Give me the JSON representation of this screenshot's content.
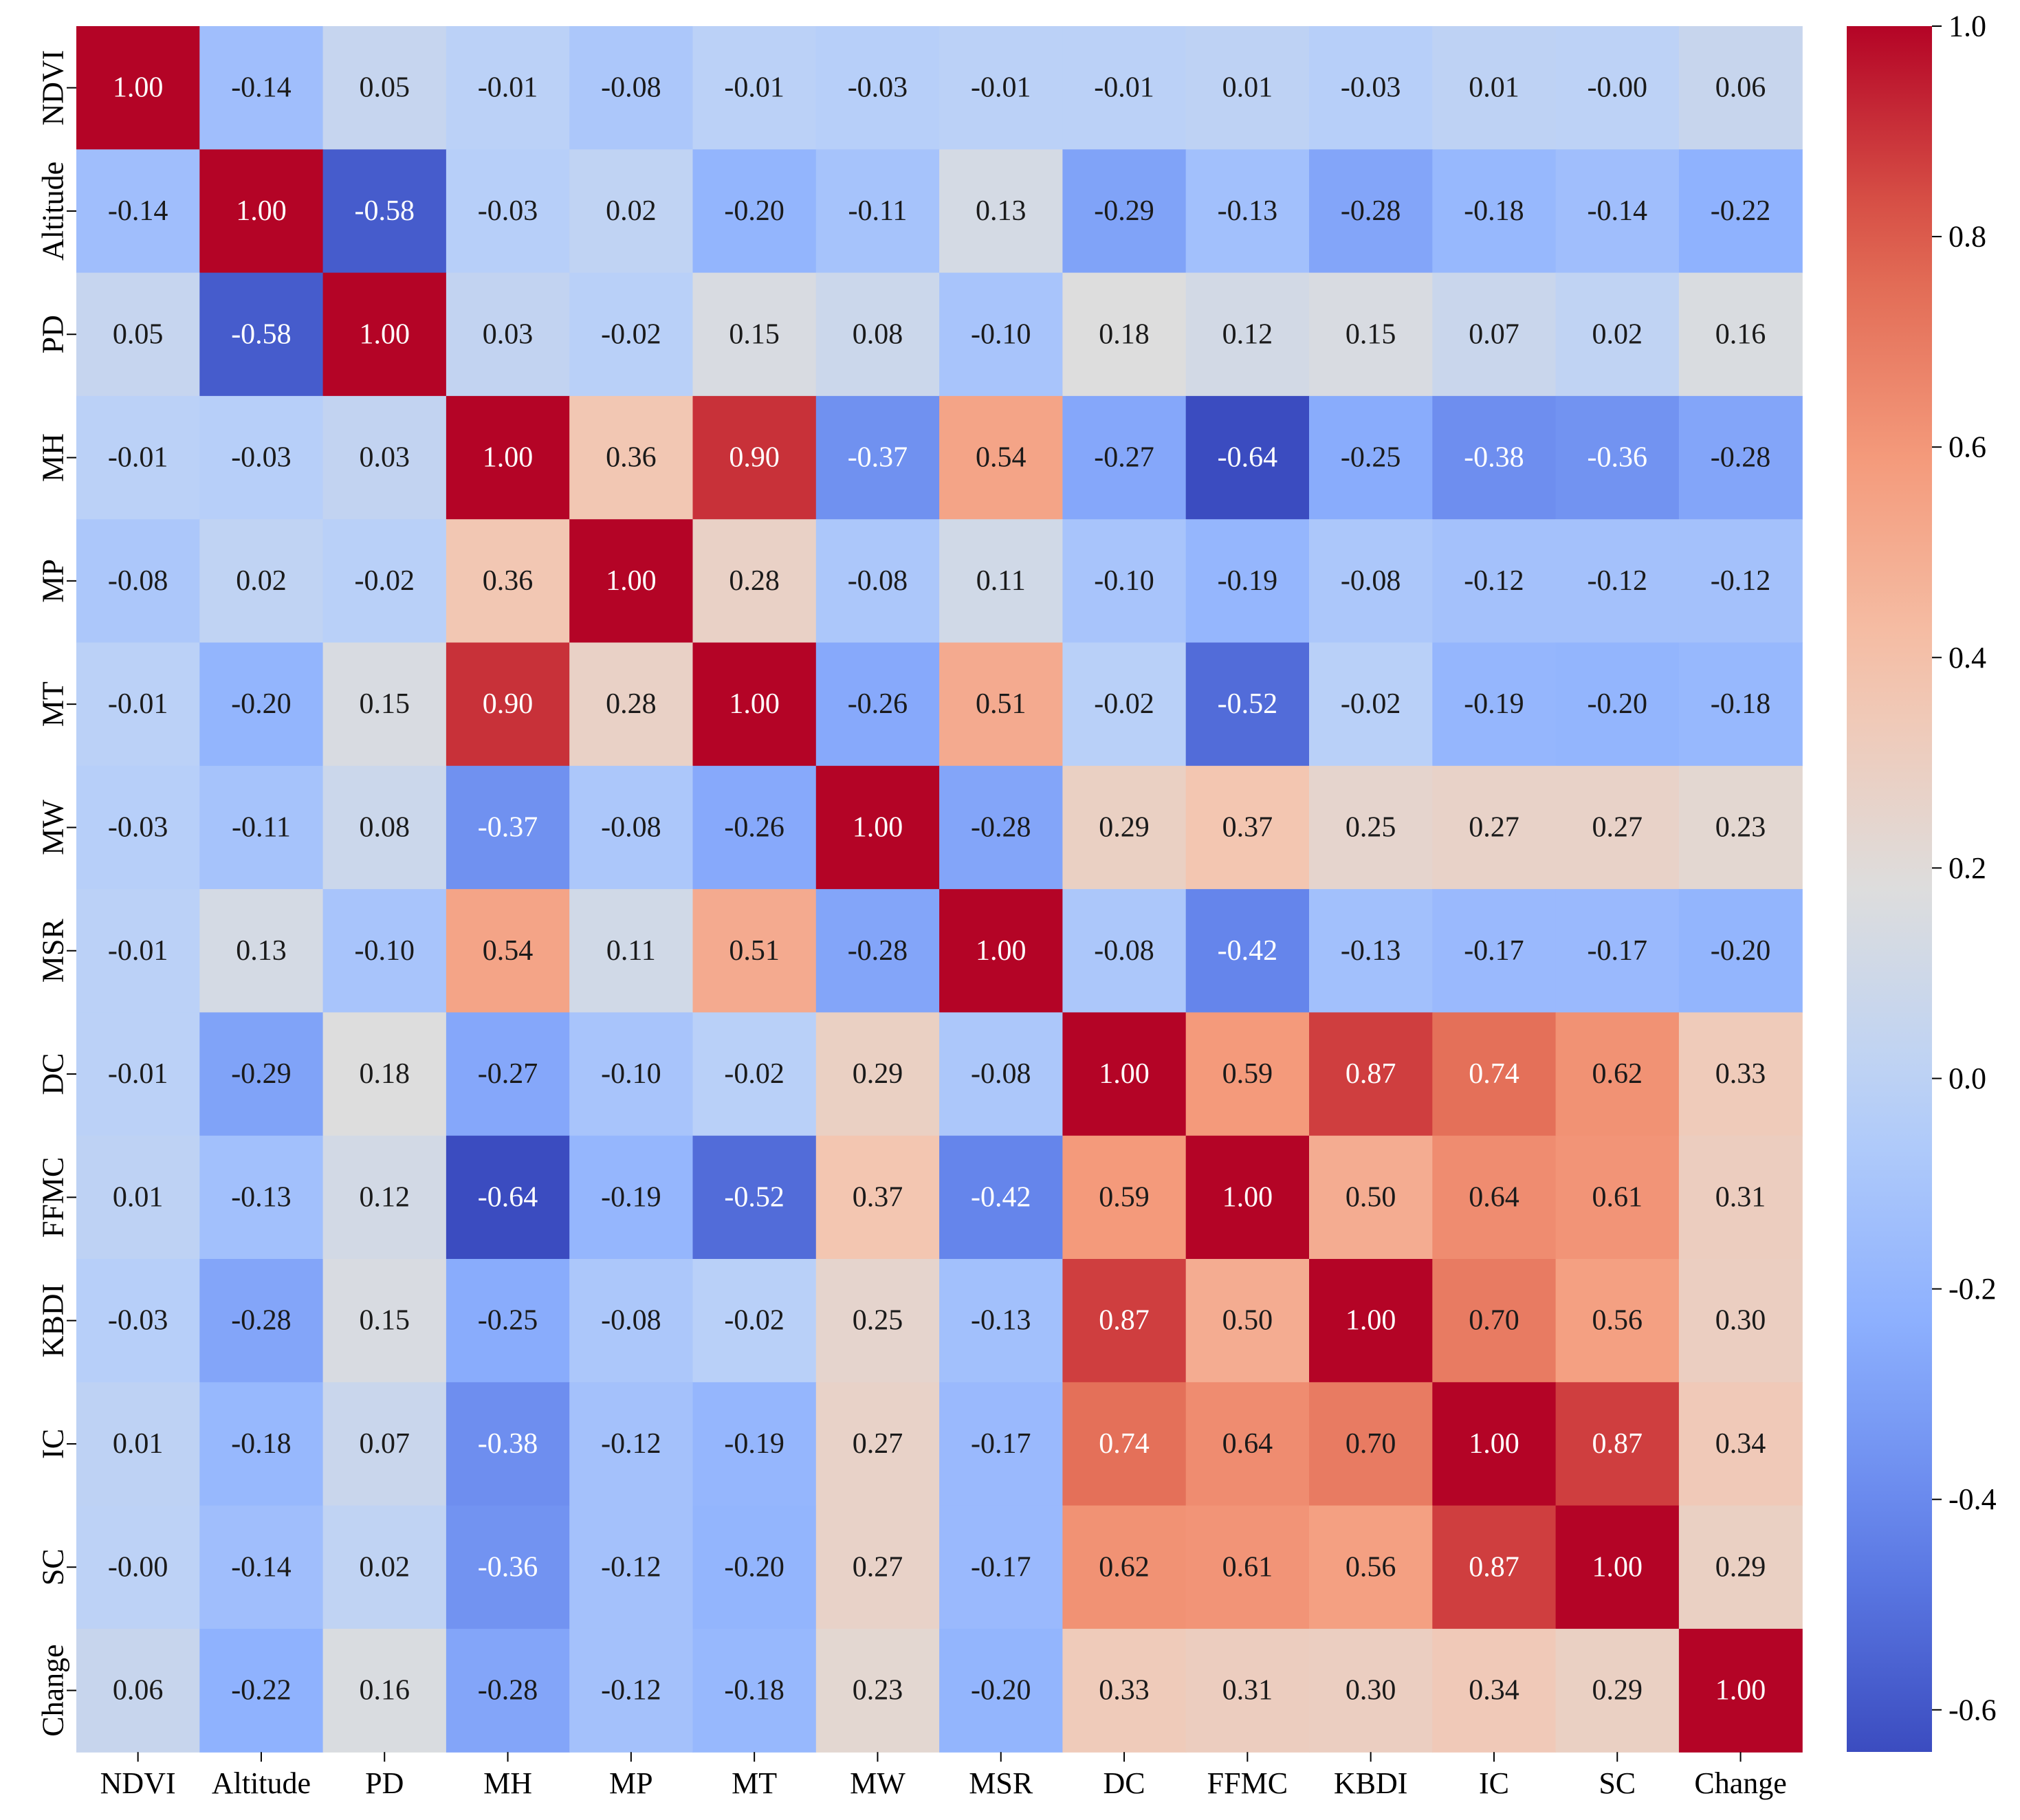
{
  "chart_data": {
    "type": "heatmap",
    "title": "",
    "xlabel": "",
    "ylabel": "",
    "labels": [
      "NDVI",
      "Altitude",
      "PD",
      "MH",
      "MP",
      "MT",
      "MW",
      "MSR",
      "DC",
      "FFMC",
      "KBDI",
      "IC",
      "SC",
      "Change"
    ],
    "matrix": [
      [
        1.0,
        -0.14,
        0.05,
        -0.01,
        -0.08,
        -0.01,
        -0.03,
        -0.01,
        -0.01,
        0.01,
        -0.03,
        0.01,
        -0.0,
        0.06
      ],
      [
        -0.14,
        1.0,
        -0.58,
        -0.03,
        0.02,
        -0.2,
        -0.11,
        0.13,
        -0.29,
        -0.13,
        -0.28,
        -0.18,
        -0.14,
        -0.22
      ],
      [
        0.05,
        -0.58,
        1.0,
        0.03,
        -0.02,
        0.15,
        0.08,
        -0.1,
        0.18,
        0.12,
        0.15,
        0.07,
        0.02,
        0.16
      ],
      [
        -0.01,
        -0.03,
        0.03,
        1.0,
        0.36,
        0.9,
        -0.37,
        0.54,
        -0.27,
        -0.64,
        -0.25,
        -0.38,
        -0.36,
        -0.28
      ],
      [
        -0.08,
        0.02,
        -0.02,
        0.36,
        1.0,
        0.28,
        -0.08,
        0.11,
        -0.1,
        -0.19,
        -0.08,
        -0.12,
        -0.12,
        -0.12
      ],
      [
        -0.01,
        -0.2,
        0.15,
        0.9,
        0.28,
        1.0,
        -0.26,
        0.51,
        -0.02,
        -0.52,
        -0.02,
        -0.19,
        -0.2,
        -0.18
      ],
      [
        -0.03,
        -0.11,
        0.08,
        -0.37,
        -0.08,
        -0.26,
        1.0,
        -0.28,
        0.29,
        0.37,
        0.25,
        0.27,
        0.27,
        0.23
      ],
      [
        -0.01,
        0.13,
        -0.1,
        0.54,
        0.11,
        0.51,
        -0.28,
        1.0,
        -0.08,
        -0.42,
        -0.13,
        -0.17,
        -0.17,
        -0.2
      ],
      [
        -0.01,
        -0.29,
        0.18,
        -0.27,
        -0.1,
        -0.02,
        0.29,
        -0.08,
        1.0,
        0.59,
        0.87,
        0.74,
        0.62,
        0.33
      ],
      [
        0.01,
        -0.13,
        0.12,
        -0.64,
        -0.19,
        -0.52,
        0.37,
        -0.42,
        0.59,
        1.0,
        0.5,
        0.64,
        0.61,
        0.31
      ],
      [
        -0.03,
        -0.28,
        0.15,
        -0.25,
        -0.08,
        -0.02,
        0.25,
        -0.13,
        0.87,
        0.5,
        1.0,
        0.7,
        0.56,
        0.3
      ],
      [
        0.01,
        -0.18,
        0.07,
        -0.38,
        -0.12,
        -0.19,
        0.27,
        -0.17,
        0.74,
        0.64,
        0.7,
        1.0,
        0.87,
        0.34
      ],
      [
        -0.0,
        -0.14,
        0.02,
        -0.36,
        -0.12,
        -0.2,
        0.27,
        -0.17,
        0.62,
        0.61,
        0.56,
        0.87,
        1.0,
        0.29
      ],
      [
        0.06,
        -0.22,
        0.16,
        -0.28,
        -0.12,
        -0.18,
        0.23,
        -0.2,
        0.33,
        0.31,
        0.3,
        0.34,
        0.29,
        1.0
      ]
    ],
    "colormap": "coolwarm",
    "vmin": -0.64,
    "vmax": 1.0,
    "colorbar": {
      "ticks": [
        1.0,
        0.8,
        0.6,
        0.4,
        0.2,
        0.0,
        -0.2,
        -0.4,
        -0.6
      ],
      "tick_labels": [
        "1.0",
        "0.8",
        "0.6",
        "0.4",
        "0.2",
        "0.0",
        "-0.2",
        "-0.4",
        "-0.6"
      ]
    },
    "value_format": "2 decimals",
    "grid": false
  }
}
